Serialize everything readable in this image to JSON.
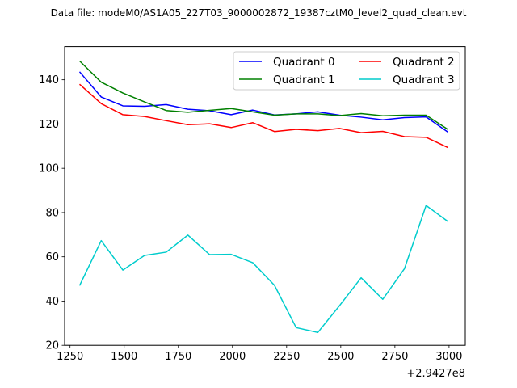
{
  "chart_data": {
    "type": "line",
    "title": "Data file: modeM0/AS1A05_227T03_9000002872_19387cztM0_level2_quad_clean.evt",
    "xlabel": "",
    "ylabel": "",
    "x_offset_label": "+2.9427e8",
    "xlim": [
      1225,
      3075
    ],
    "ylim": [
      20,
      155
    ],
    "xticks": [
      1250,
      1500,
      1750,
      2000,
      2250,
      2500,
      2750,
      3000
    ],
    "yticks": [
      20,
      40,
      60,
      80,
      100,
      120,
      140
    ],
    "grid": false,
    "legend_position": "top-right",
    "x": [
      1294,
      1394,
      1494,
      1594,
      1694,
      1794,
      1894,
      1994,
      2094,
      2194,
      2294,
      2394,
      2494,
      2594,
      2694,
      2794,
      2894,
      2994
    ],
    "series": [
      {
        "name": "Quadrant 0",
        "color": "#0000ff",
        "values": [
          143.6,
          132.2,
          128.2,
          128.0,
          128.8,
          126.7,
          126.0,
          124.2,
          126.3,
          124.1,
          124.6,
          125.5,
          124.0,
          123.1,
          121.9,
          122.9,
          123.2,
          116.4
        ]
      },
      {
        "name": "Quadrant 1",
        "color": "#008000",
        "values": [
          148.5,
          138.9,
          134.0,
          130.0,
          126.1,
          125.3,
          126.2,
          127.0,
          125.5,
          124.0,
          124.6,
          124.6,
          123.8,
          124.7,
          123.7,
          124.0,
          124.0,
          117.6
        ]
      },
      {
        "name": "Quadrant 2",
        "color": "#ff0000",
        "values": [
          138.0,
          129.2,
          124.2,
          123.4,
          121.5,
          119.7,
          120.1,
          118.4,
          120.6,
          116.6,
          117.6,
          117.0,
          118.0,
          116.1,
          116.7,
          114.3,
          114.0,
          109.4
        ]
      },
      {
        "name": "Quadrant 3",
        "color": "#00cccc",
        "values": [
          47.0,
          67.3,
          54.0,
          60.6,
          62.1,
          69.8,
          61.0,
          61.1,
          57.3,
          47.1,
          28.0,
          25.8,
          37.9,
          50.5,
          40.8,
          54.6,
          83.2,
          76.0
        ]
      }
    ]
  }
}
